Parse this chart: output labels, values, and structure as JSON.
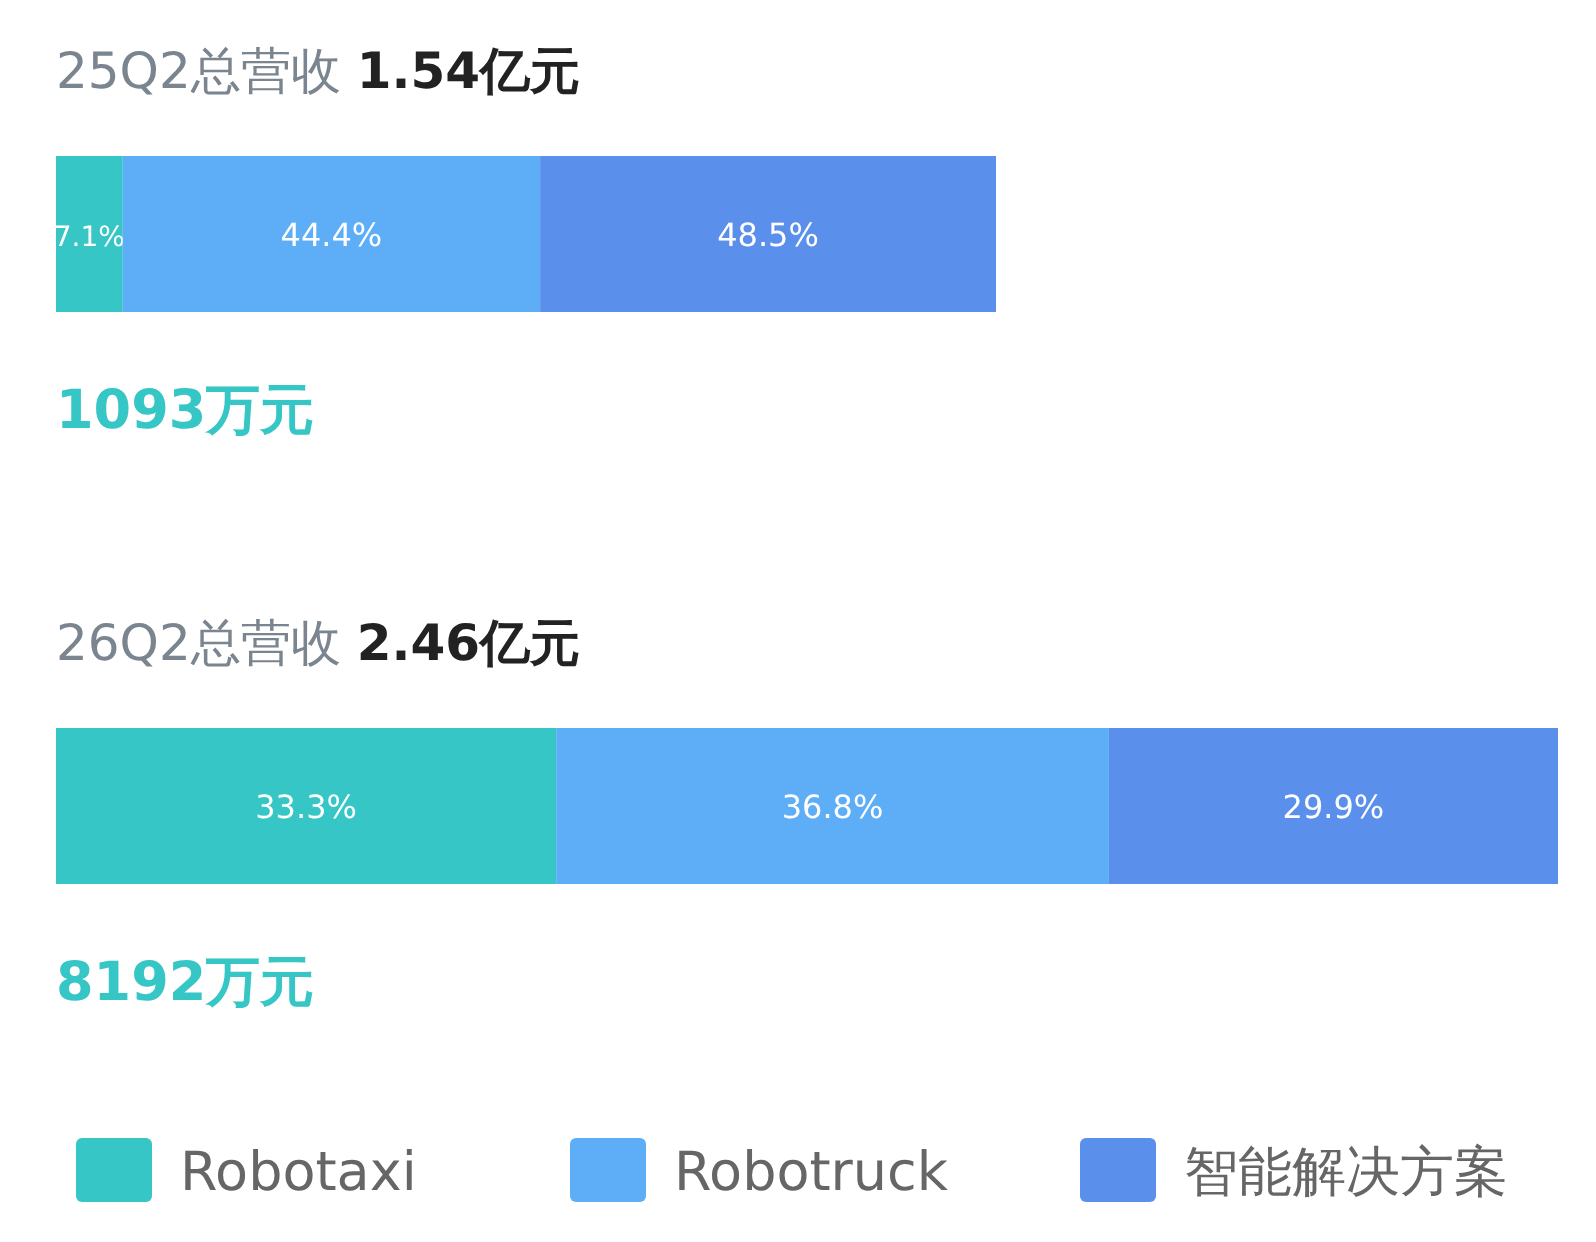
{
  "chart_data": [
    {
      "type": "bar",
      "orientation": "horizontal",
      "stacked": true,
      "title": "25Q2总营收 1.54亿元",
      "categories": [
        null
      ],
      "series": [
        {
          "color": "#36c6c6",
          "values": [
            7.1
          ],
          "value_labels": [
            "7.1%"
          ]
        },
        {
          "color": "#5daef6",
          "values": [
            44.4
          ],
          "value_labels": [
            "44.4%"
          ]
        },
        {
          "color": "#5b8fec",
          "values": [
            48.5
          ],
          "value_labels": [
            "48.5%"
          ]
        }
      ],
      "annotations": [
        "1093万元"
      ]
    },
    {
      "type": "bar",
      "orientation": "horizontal",
      "stacked": true,
      "title": "26Q2总营收 2.46亿元",
      "categories": [
        null
      ],
      "series": [
        {
          "name": "Robotaxi",
          "color": "#36c6c6",
          "values": [
            33.3
          ],
          "value_labels": [
            "33.3%"
          ]
        },
        {
          "name": "Robotruck",
          "color": "#5daef6",
          "values": [
            36.8
          ],
          "value_labels": [
            "36.8%"
          ]
        },
        {
          "name": "智能解决方案",
          "color": "#5b8fec",
          "values": [
            29.9
          ],
          "value_labels": [
            "29.9%"
          ]
        }
      ],
      "annotations": [
        "8192万元"
      ],
      "legend": "bottom"
    }
  ]
}
